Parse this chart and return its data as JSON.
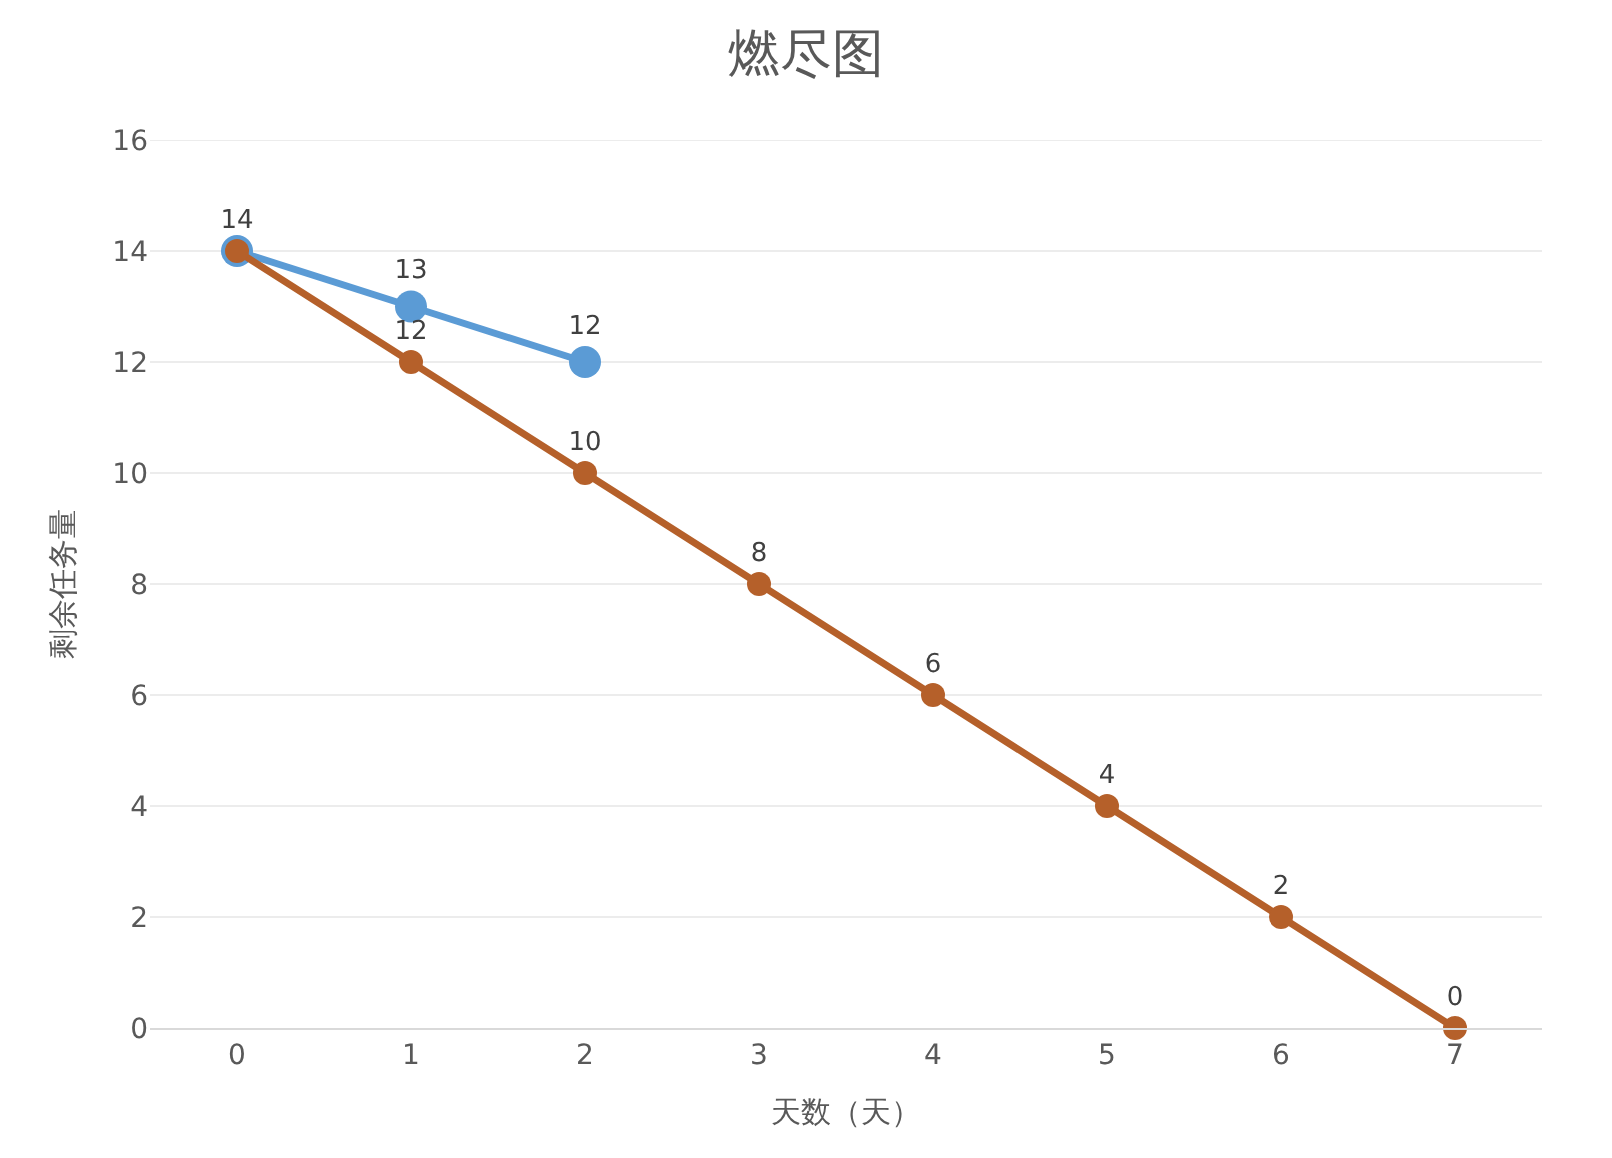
{
  "chart_data": {
    "type": "line",
    "title": "燃尽图",
    "xlabel": "天数（天）",
    "ylabel": "剩余任务量",
    "categories": [
      "0",
      "1",
      "2",
      "3",
      "4",
      "5",
      "6",
      "7"
    ],
    "series": [
      {
        "color": "#5b9bd5",
        "values": [
          14,
          13,
          12,
          null,
          null,
          null,
          null,
          null
        ],
        "value_labels": [
          null,
          "13",
          "12",
          null,
          null,
          null,
          null,
          null
        ]
      },
      {
        "color": "#b5602a",
        "values": [
          14,
          12,
          10,
          8,
          6,
          4,
          2,
          0
        ]
      }
    ],
    "ylim": [
      0,
      16
    ],
    "yticks": [
      0,
      2,
      4,
      6,
      8,
      10,
      12,
      14,
      16
    ],
    "grid": "y",
    "legend": false,
    "marker": "circle",
    "line_style": "solid",
    "data_labels": true
  }
}
